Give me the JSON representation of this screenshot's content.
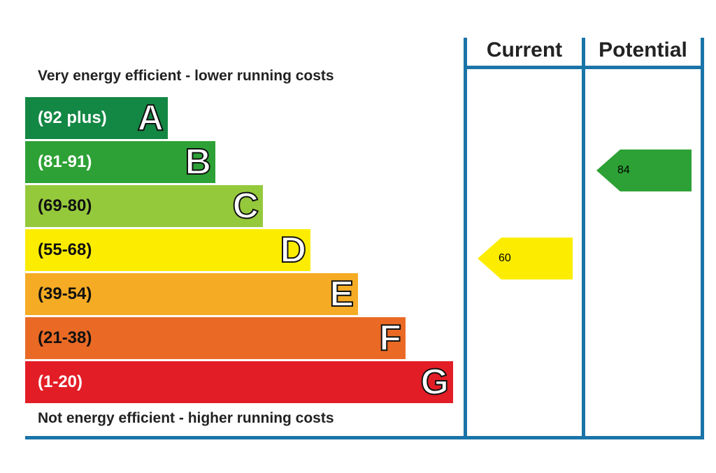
{
  "chart_data": {
    "type": "bar",
    "top_caption": "Very energy efficient - lower running costs",
    "bottom_caption": "Not energy efficient - higher running costs",
    "bands": [
      {
        "range": "(92 plus)",
        "letter": "A",
        "color": "#138744",
        "text_color": "#ffffff"
      },
      {
        "range": "(81-91)",
        "letter": "B",
        "color": "#2da135",
        "text_color": "#ffffff"
      },
      {
        "range": "(69-80)",
        "letter": "C",
        "color": "#95c93c",
        "text_color": "#111111"
      },
      {
        "range": "(55-68)",
        "letter": "D",
        "color": "#fced00",
        "text_color": "#111111"
      },
      {
        "range": "(39-54)",
        "letter": "E",
        "color": "#f5ac24",
        "text_color": "#111111"
      },
      {
        "range": "(21-38)",
        "letter": "F",
        "color": "#ea6a25",
        "text_color": "#111111"
      },
      {
        "range": "(1-20)",
        "letter": "G",
        "color": "#e31d26",
        "text_color": "#ffffff"
      }
    ],
    "columns": [
      "Current",
      "Potential"
    ],
    "ratings": [
      {
        "column": "Current",
        "value": 60,
        "band": "D",
        "color": "#fced00"
      },
      {
        "column": "Potential",
        "value": 84,
        "band": "B",
        "color": "#2da135"
      }
    ],
    "border_color": "#1a74a8"
  }
}
